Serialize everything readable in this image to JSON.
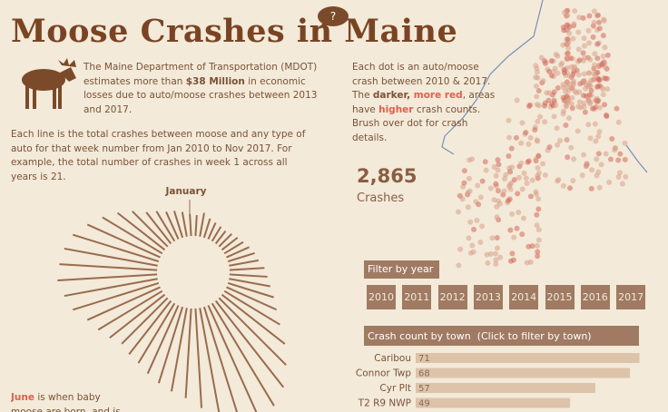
{
  "header": {
    "title": "Moose Crashes in Maine",
    "help": "?"
  },
  "intro": {
    "before": "The Maine Department of Transportation (MDOT) estimates more than ",
    "highlight": "$38 Million",
    "after": " in economic losses due to auto/moose crashes between 2013 and 2017."
  },
  "explainer": "Each line is the total crashes between moose and any type of auto for that week number from Jan 2010 to Nov 2017. For example, the total number of crashes in week 1 across all years is 21.",
  "map_note": {
    "part1": "Each dot is an auto/moose crash between 2010 & 2017. The ",
    "darker": "darker,",
    "more_red": " more red",
    "part2": ", areas have ",
    "higher": "higher",
    "part3": " crash counts. Brush over dot for crash details."
  },
  "total": {
    "value": "2,865",
    "label": "Crashes"
  },
  "year_filter": {
    "title": "Filter by year",
    "years": [
      "2010",
      "2011",
      "2012",
      "2013",
      "2014",
      "2015",
      "2016",
      "2017"
    ]
  },
  "june_note": {
    "highlight": "June",
    "text": " is when baby moose are born, and is typically"
  },
  "chart_data": [
    {
      "type": "radial",
      "label": "January",
      "rlim": [
        0,
        150
      ],
      "values": [
        21,
        24,
        20,
        18,
        17,
        16,
        18,
        20,
        22,
        25,
        28,
        30,
        35,
        38,
        42,
        48,
        55,
        65,
        80,
        95,
        110,
        120,
        130,
        125,
        115,
        100,
        90,
        85,
        80,
        75,
        70,
        68,
        65,
        70,
        75,
        80,
        90,
        95,
        100,
        98,
        95,
        90,
        80,
        70,
        60,
        50,
        40,
        35,
        30,
        28,
        25,
        22
      ],
      "color": "#9a6b4e"
    },
    {
      "type": "hbar",
      "title": "Crash count by town  (Click to filter by town)",
      "categories": [
        "Caribou",
        "Connor Twp",
        "Cyr Plt",
        "T2 R9 NWP"
      ],
      "values": [
        71,
        68,
        57,
        49
      ],
      "xlim": [
        0,
        72
      ],
      "color": "#dcc3a9"
    }
  ]
}
